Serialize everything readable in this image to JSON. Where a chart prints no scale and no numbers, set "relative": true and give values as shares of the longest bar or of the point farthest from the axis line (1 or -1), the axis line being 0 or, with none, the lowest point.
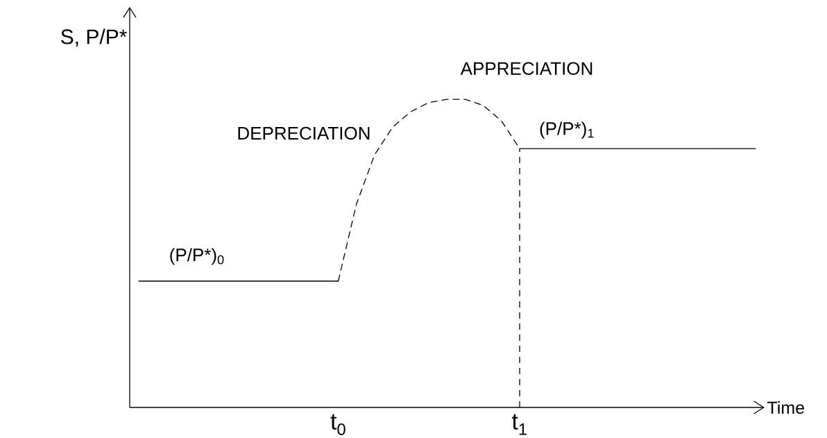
{
  "chart_data": {
    "type": "line",
    "relative": true,
    "xlabel": "Time",
    "ylabel": "S, P/P*",
    "categories": [
      null,
      null,
      null,
      null,
      null,
      null,
      null,
      null,
      null,
      null,
      null,
      "t$_{0}$",
      null,
      null,
      null,
      null,
      null,
      null,
      null,
      null,
      null,
      "t$_{1}$",
      null,
      null,
      null,
      null,
      null,
      null,
      null,
      null,
      null,
      null,
      null,
      null,
      null
    ],
    "series": [
      {
        "color": "#000000",
        "line_style": "solid",
        "values": [
          0.41,
          0.41,
          0.41,
          0.41,
          0.41,
          0.41,
          0.41,
          0.41,
          0.41,
          0.41,
          0.41,
          0.41,
          null,
          null,
          null,
          null,
          null,
          null,
          null,
          null,
          null,
          null,
          null,
          null,
          null,
          null,
          null,
          null,
          null,
          null,
          null,
          null,
          null,
          null,
          null
        ]
      },
      {
        "color": "#000000",
        "line_style": "dashed",
        "values": [
          null,
          null,
          null,
          null,
          null,
          null,
          null,
          null,
          null,
          null,
          null,
          0.41,
          0.66,
          0.82,
          0.91,
          0.96,
          0.99,
          1.0,
          1.0,
          0.98,
          0.93,
          0.84,
          null,
          null,
          null,
          null,
          null,
          null,
          null,
          null,
          null,
          null,
          null,
          null,
          null
        ]
      },
      {
        "color": "#000000",
        "line_style": "solid",
        "values": [
          null,
          null,
          null,
          null,
          null,
          null,
          null,
          null,
          null,
          null,
          null,
          null,
          null,
          null,
          null,
          null,
          null,
          null,
          null,
          null,
          null,
          0.84,
          0.84,
          0.84,
          0.84,
          0.84,
          0.84,
          0.84,
          0.84,
          0.84,
          0.84,
          0.84,
          0.84,
          0.84,
          0.84
        ]
      }
    ],
    "ref_lines": [
      {
        "axis": "x",
        "value": "t$_{1}$",
        "line_style": "dashed",
        "color": "#000000"
      }
    ],
    "annotations": [
      "DEPRECIATION",
      "APPRECIATION",
      "(P/P*)$_{0}$",
      "(P/P*)$_{1}$"
    ],
    "grid": false,
    "marker": "none"
  }
}
